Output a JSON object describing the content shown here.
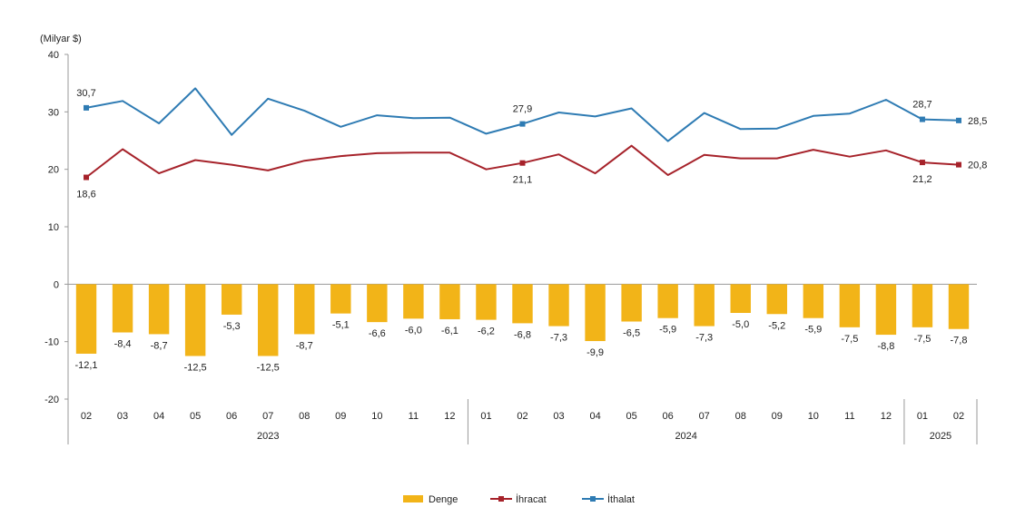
{
  "chart_data": {
    "type": "bar+line",
    "unit_label": "(Milyar $)",
    "yticks": [
      40,
      30,
      20,
      10,
      0,
      -10,
      -20
    ],
    "ylim": [
      -20,
      40
    ],
    "months": [
      "02",
      "03",
      "04",
      "05",
      "06",
      "07",
      "08",
      "09",
      "10",
      "11",
      "12",
      "01",
      "02",
      "03",
      "04",
      "05",
      "06",
      "07",
      "08",
      "09",
      "10",
      "11",
      "12",
      "01",
      "02"
    ],
    "year_groups": [
      {
        "label": "2023",
        "start": 0,
        "end": 10
      },
      {
        "label": "2024",
        "start": 11,
        "end": 22
      },
      {
        "label": "2025",
        "start": 23,
        "end": 24
      }
    ],
    "series": [
      {
        "name": "Denge",
        "kind": "bar",
        "color": "#f2b418",
        "values": [
          -12.1,
          -8.4,
          -8.7,
          -12.5,
          -5.3,
          -12.5,
          -8.7,
          -5.1,
          -6.6,
          -6.0,
          -6.1,
          -6.2,
          -6.8,
          -7.3,
          -9.9,
          -6.5,
          -5.9,
          -7.3,
          -5.0,
          -5.2,
          -5.9,
          -7.5,
          -8.8,
          -7.5,
          -7.8
        ],
        "labels": [
          "-12,1",
          "-8,4",
          "-8,7",
          "-12,5",
          "-5,3",
          "-12,5",
          "-8,7",
          "-5,1",
          "-6,6",
          "-6,0",
          "-6,1",
          "-6,2",
          "-6,8",
          "-7,3",
          "-9,9",
          "-6,5",
          "-5,9",
          "-7,3",
          "-5,0",
          "-5,2",
          "-5,9",
          "-7,5",
          "-8,8",
          "-7,5",
          "-7,8"
        ]
      },
      {
        "name": "İhracat",
        "kind": "line",
        "color": "#a6222a",
        "values": [
          18.6,
          23.5,
          19.3,
          21.6,
          20.8,
          19.8,
          21.5,
          22.3,
          22.8,
          22.9,
          22.9,
          20.0,
          21.1,
          22.6,
          19.3,
          24.1,
          19.0,
          22.5,
          21.9,
          21.9,
          23.4,
          22.2,
          23.3,
          21.2,
          20.8
        ],
        "markers": [
          0,
          12,
          23,
          24
        ],
        "point_labels": [
          {
            "i": 0,
            "text": "18,6",
            "pos": "below"
          },
          {
            "i": 12,
            "text": "21,1",
            "pos": "below"
          },
          {
            "i": 23,
            "text": "21,2",
            "pos": "below"
          },
          {
            "i": 24,
            "text": "20,8",
            "pos": "right"
          }
        ]
      },
      {
        "name": "İthalat",
        "kind": "line",
        "color": "#2e7bb3",
        "values": [
          30.7,
          31.9,
          28.0,
          34.1,
          26.0,
          32.3,
          30.2,
          27.4,
          29.4,
          28.9,
          29.0,
          26.2,
          27.9,
          29.9,
          29.2,
          30.6,
          24.9,
          29.8,
          27.0,
          27.1,
          29.3,
          29.7,
          32.1,
          28.7,
          28.5
        ],
        "markers": [
          0,
          12,
          23,
          24
        ],
        "point_labels": [
          {
            "i": 0,
            "text": "30,7",
            "pos": "above"
          },
          {
            "i": 12,
            "text": "27,9",
            "pos": "above"
          },
          {
            "i": 23,
            "text": "28,7",
            "pos": "above"
          },
          {
            "i": 24,
            "text": "28,5",
            "pos": "right"
          }
        ]
      }
    ],
    "legend": {
      "placement": "bottom-center",
      "items": [
        {
          "name": "Denge",
          "color": "#f2b418"
        },
        {
          "name": "İhracat",
          "color": "#a6222a"
        },
        {
          "name": "İthalat",
          "color": "#2e7bb3"
        }
      ]
    }
  }
}
